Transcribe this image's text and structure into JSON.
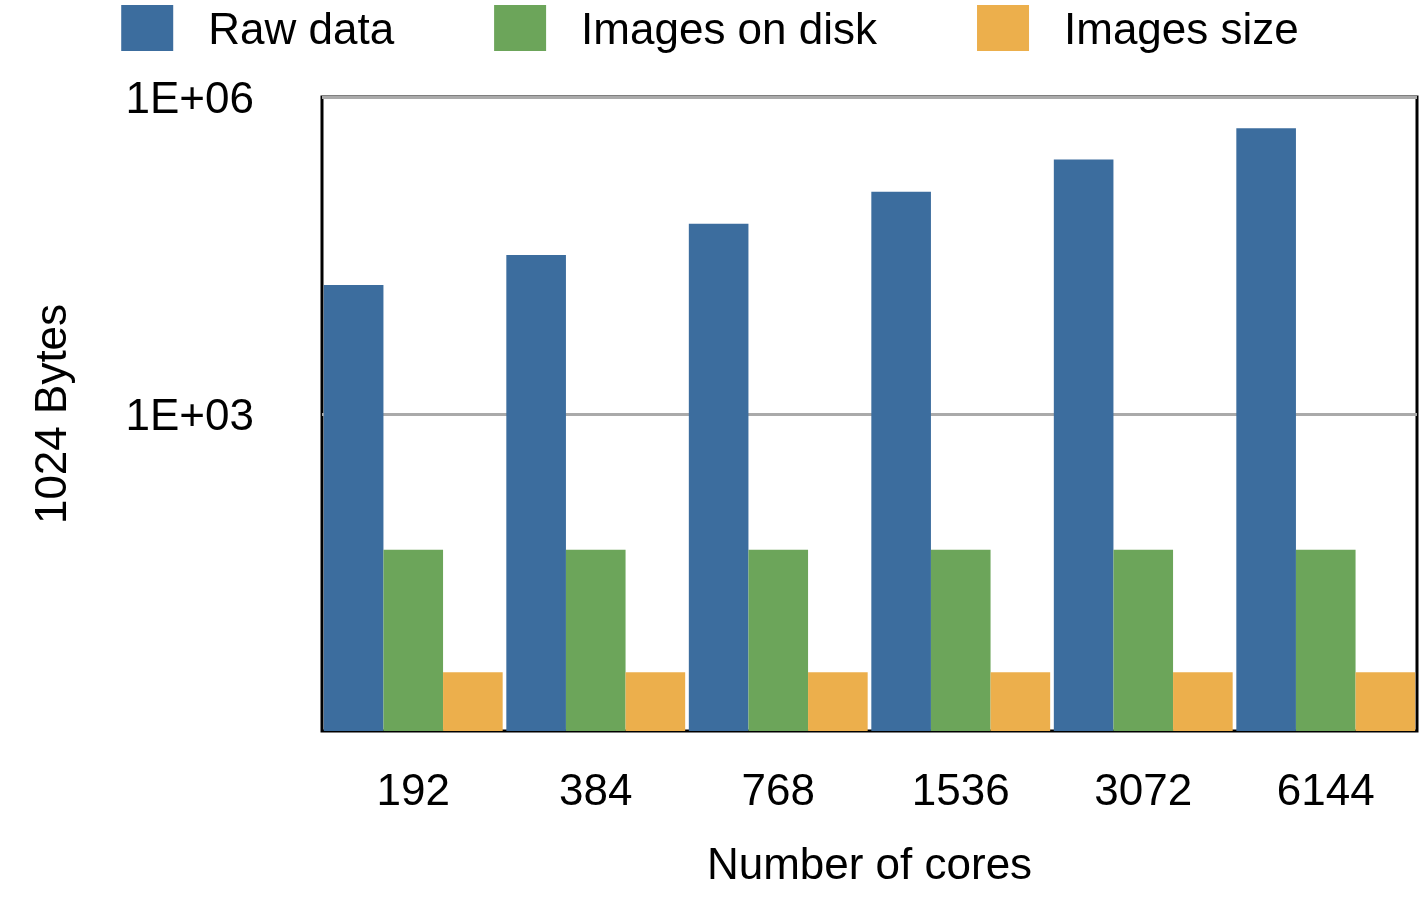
{
  "chart_data": {
    "type": "bar",
    "xlabel": "Number of cores",
    "ylabel": "1024 Bytes",
    "categories": [
      "192",
      "384",
      "768",
      "1536",
      "3072",
      "6144"
    ],
    "series": [
      {
        "name": "Raw data",
        "color": "#3c6d9e",
        "values": [
          16600,
          32000,
          63000,
          127000,
          256000,
          505000
        ]
      },
      {
        "name": "Images on disk",
        "color": "#6ca55a",
        "values": [
          52,
          52,
          52,
          52,
          52,
          52
        ]
      },
      {
        "name": "Images size",
        "color": "#ecaf4c",
        "values": [
          3.6,
          3.6,
          3.6,
          3.6,
          3.6,
          3.6
        ]
      }
    ],
    "log": "y",
    "ylim": [
      1,
      1000000
    ],
    "yticks": [
      {
        "value": 1000,
        "label": "1E+03"
      },
      {
        "value": 1000000,
        "label": "1E+06"
      }
    ],
    "grid": "y",
    "legend": "top"
  }
}
